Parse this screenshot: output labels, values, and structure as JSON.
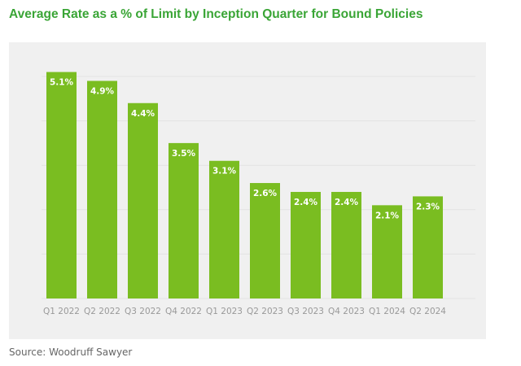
{
  "chart_data": {
    "type": "bar",
    "title": "Average Rate as a % of Limit by Inception Quarter for Bound Policies",
    "categories": [
      "Q1 2022",
      "Q2 2022",
      "Q3 2022",
      "Q4 2022",
      "Q1 2023",
      "Q2 2023",
      "Q3 2023",
      "Q4 2023",
      "Q1 2024",
      "Q2 2024"
    ],
    "values": [
      5.1,
      4.9,
      4.4,
      3.5,
      3.1,
      2.6,
      2.4,
      2.4,
      2.1,
      2.3
    ],
    "data_labels": [
      "5.1%",
      "4.9%",
      "4.4%",
      "3.5%",
      "3.1%",
      "2.6%",
      "2.4%",
      "2.4%",
      "2.1%",
      "2.3%"
    ],
    "unit": "%",
    "ylim": [
      0,
      5
    ],
    "grid": true,
    "xlabel": "",
    "ylabel": "",
    "colors": {
      "bar": "#7abd21",
      "title": "#3aa536",
      "background": "#f0f0f0",
      "grid": "#e3e3e3"
    }
  },
  "source": "Source: Woodruff Sawyer"
}
